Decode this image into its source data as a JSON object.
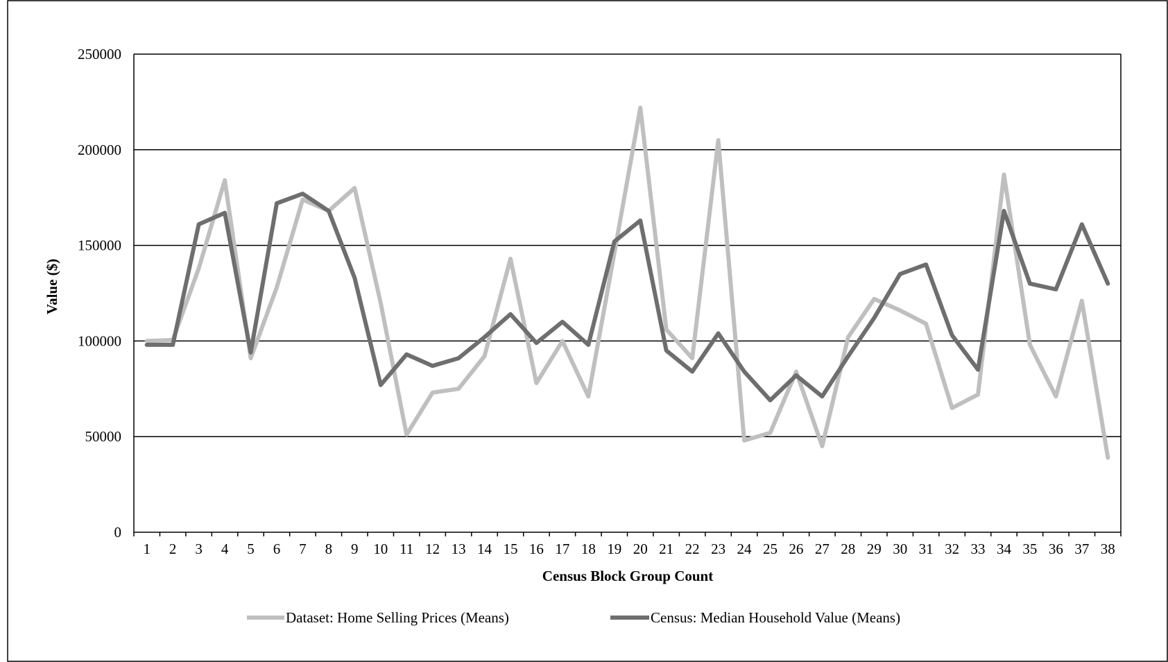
{
  "chart_data": {
    "type": "line",
    "title": "",
    "xlabel": "Census Block Group Count",
    "ylabel": "Value ($)",
    "ylim": [
      0,
      250000
    ],
    "yticks": [
      0,
      50000,
      100000,
      150000,
      200000,
      250000
    ],
    "grid": "horizontal",
    "legend_position": "bottom",
    "categories": [
      "1",
      "2",
      "3",
      "4",
      "5",
      "6",
      "7",
      "8",
      "9",
      "10",
      "11",
      "12",
      "13",
      "14",
      "15",
      "16",
      "17",
      "18",
      "19",
      "20",
      "21",
      "22",
      "23",
      "24",
      "25",
      "26",
      "27",
      "28",
      "29",
      "30",
      "31",
      "32",
      "33",
      "34",
      "35",
      "36",
      "37",
      "38"
    ],
    "series": [
      {
        "name": "Dataset: Home Selling Prices (Means)",
        "color": "#bfbfbf",
        "values": [
          100000,
          100500,
          138000,
          184000,
          91000,
          128000,
          174000,
          168000,
          180000,
          120000,
          51000,
          73000,
          75000,
          92000,
          143000,
          78000,
          100000,
          71000,
          146000,
          222000,
          106000,
          91000,
          205000,
          48000,
          52000,
          84000,
          45000,
          102000,
          122000,
          116000,
          109000,
          65000,
          72000,
          187000,
          98000,
          71000,
          121000,
          39000
        ]
      },
      {
        "name": "Census: Median Household Value (Means)",
        "color": "#6e6e6e",
        "values": [
          98000,
          98000,
          161000,
          167000,
          94000,
          172000,
          177000,
          168000,
          133000,
          77000,
          93000,
          87000,
          91000,
          102000,
          114000,
          99000,
          110000,
          98000,
          152000,
          163000,
          95000,
          84000,
          104000,
          84000,
          69000,
          82000,
          71000,
          92000,
          112000,
          135000,
          140000,
          103000,
          85000,
          168000,
          130000,
          127000,
          161000,
          130000
        ]
      }
    ]
  }
}
